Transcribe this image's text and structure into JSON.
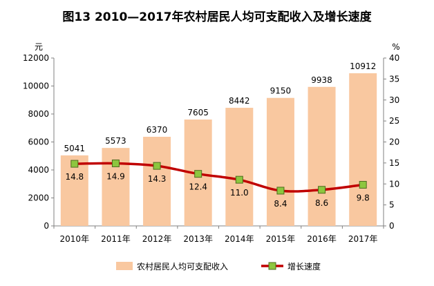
{
  "title": "图13  2010—2017年农村居民人均可支配收入及增长速度",
  "chart_data": {
    "type": "bar",
    "title": "图13  2010—2017年农村居民人均可支配收入及增长速度",
    "categories": [
      "2010年",
      "2011年",
      "2012年",
      "2013年",
      "2014年",
      "2015年",
      "2016年",
      "2017年"
    ],
    "series": [
      {
        "name": "农村居民人均可支配收入",
        "type": "bar",
        "axis": "left",
        "values": [
          5041,
          5573,
          6370,
          7605,
          8442,
          9150,
          9938,
          10912
        ],
        "color": "#f9c8a0"
      },
      {
        "name": "增长速度",
        "type": "line",
        "axis": "right",
        "values": [
          14.8,
          14.9,
          14.3,
          12.4,
          11.0,
          8.4,
          8.6,
          9.8
        ],
        "color": "#c00000",
        "marker_color": "#8dc63f"
      }
    ],
    "y_left": {
      "unit": "元",
      "ylim": [
        0,
        12000
      ],
      "ticks": [
        "0",
        "2000",
        "4000",
        "6000",
        "8000",
        "10000",
        "12000"
      ]
    },
    "y_right": {
      "unit": "%",
      "ylim": [
        0,
        40
      ],
      "ticks": [
        "0",
        "5",
        "10",
        "15",
        "20",
        "25",
        "30",
        "35",
        "40"
      ]
    },
    "grid": false,
    "legend": "bottom"
  }
}
